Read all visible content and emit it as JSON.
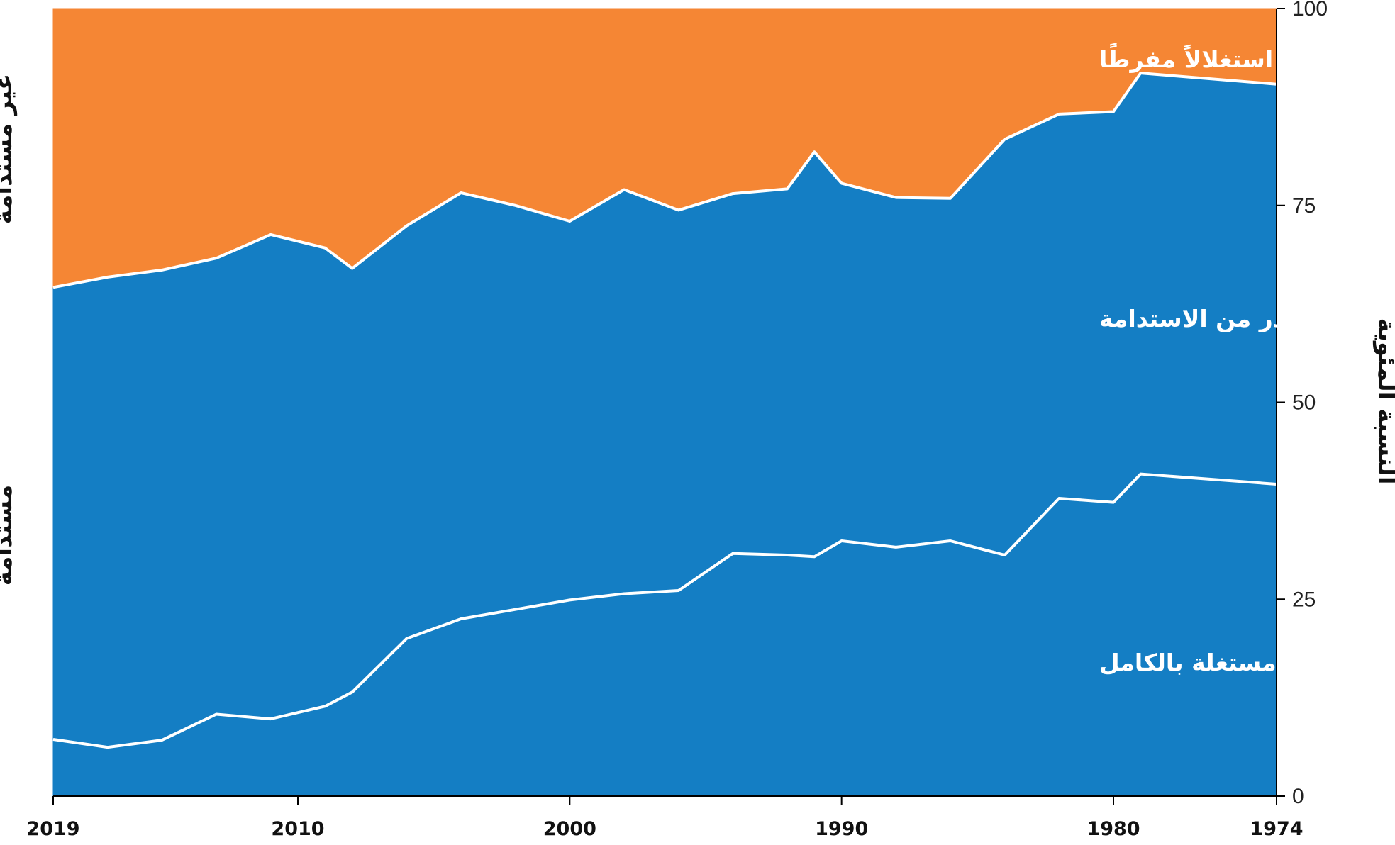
{
  "chart_data": {
    "type": "area",
    "stacked": true,
    "x_reversed": true,
    "x_range": [
      1974,
      2019
    ],
    "ylim": [
      0,
      100
    ],
    "x": [
      2019,
      2017,
      2015,
      2013,
      2011,
      2009,
      2008,
      2006,
      2004,
      2002,
      2000,
      1998,
      1996,
      1994,
      1992,
      1991,
      1990,
      1988,
      1986,
      1984,
      1982,
      1980,
      1979,
      1974
    ],
    "x_tick_values": [
      2019,
      2010,
      2000,
      1990,
      1980,
      1974
    ],
    "x_tick_labels": [
      "2019",
      "2010",
      "2000",
      "1990",
      "1980",
      "1974"
    ],
    "y_tick_values": [
      0,
      25,
      50,
      75,
      100
    ],
    "y_tick_labels": [
      "0",
      "25",
      "50",
      "75",
      "100"
    ],
    "ylabel": "النسبة المئوية",
    "series": [
      {
        "name": "غير مستغلة بالكامل",
        "color": "#147ec4",
        "values": [
          7.2,
          6.2,
          7.1,
          10.4,
          9.8,
          11.4,
          13.2,
          20.0,
          22.5,
          23.7,
          24.9,
          25.7,
          26.1,
          30.8,
          30.6,
          30.4,
          32.4,
          31.6,
          32.4,
          30.6,
          37.8,
          37.3,
          40.9,
          39.6
        ]
      },
      {
        "name": "مصطادة بأعلى قدر من الاستدامة",
        "color": "#147ec4",
        "values": [
          57.4,
          59.7,
          59.7,
          57.9,
          61.5,
          58.2,
          53.8,
          52.4,
          54.1,
          51.3,
          48.1,
          51.3,
          48.3,
          45.7,
          46.5,
          51.4,
          45.4,
          44.4,
          43.5,
          52.8,
          48.8,
          49.6,
          50.9,
          50.8
        ]
      },
      {
        "name": "مستغلّة استغلالاً مفرطًا",
        "color": "#f58634",
        "values": [
          35.4,
          34.1,
          33.2,
          31.7,
          28.7,
          30.4,
          33.0,
          27.6,
          23.4,
          25.0,
          27.0,
          23.0,
          25.6,
          23.5,
          22.9,
          18.2,
          22.2,
          24.0,
          24.1,
          16.6,
          13.4,
          13.1,
          8.2,
          9.6
        ]
      }
    ],
    "line_color": "#ffffff",
    "side_labels": {
      "unsustainable": "غير مستدامة",
      "sustainable": "مستدامة"
    }
  }
}
